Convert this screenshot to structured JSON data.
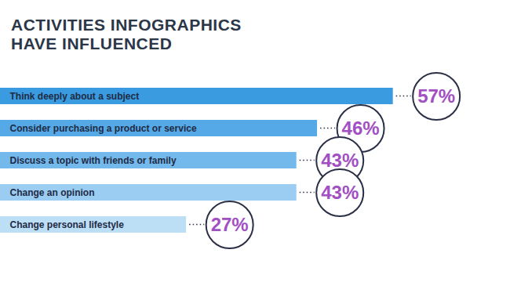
{
  "chart_data": {
    "type": "bar",
    "title": "ACTIVITIES INFOGRAPHICS HAVE INFLUENCED",
    "orientation": "horizontal",
    "categories": [
      "Think deeply about a subject",
      "Consider purchasing a product or service",
      "Discuss a topic with friends or family",
      "Change an opinion",
      "Change personal lifestyle"
    ],
    "values": [
      57,
      46,
      43,
      43,
      27
    ],
    "value_labels": [
      "57%",
      "46%",
      "43%",
      "43%",
      "27%"
    ],
    "colors": [
      "#3a9be0",
      "#55a9e6",
      "#74b9eb",
      "#9acdf1",
      "#bddff6"
    ],
    "xlim": [
      0,
      74
    ],
    "data_labels": true,
    "tick_labels": false
  }
}
